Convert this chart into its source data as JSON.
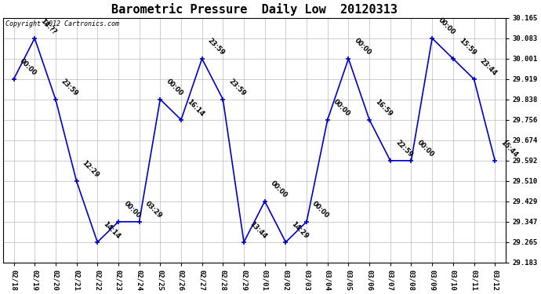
{
  "title": "Barometric Pressure  Daily Low  20120313",
  "copyright": "Copyright 2012 Cartronics.com",
  "x_labels": [
    "02/18",
    "02/19",
    "02/20",
    "02/21",
    "02/22",
    "02/23",
    "02/24",
    "02/25",
    "02/26",
    "02/27",
    "02/28",
    "02/29",
    "03/01",
    "03/02",
    "03/03",
    "03/04",
    "03/05",
    "03/06",
    "03/07",
    "03/08",
    "03/09",
    "03/10",
    "03/11",
    "03/12"
  ],
  "y_values": [
    29.919,
    30.083,
    29.838,
    29.51,
    29.265,
    29.347,
    29.347,
    29.838,
    29.756,
    30.001,
    29.838,
    29.265,
    29.429,
    29.265,
    29.347,
    29.756,
    30.001,
    29.756,
    29.592,
    29.592,
    30.083,
    30.001,
    29.919,
    29.592
  ],
  "point_labels": [
    "00:00",
    "14:??",
    "23:59",
    "12:29",
    "14:14",
    "00:00",
    "03:29",
    "00:00",
    "16:14",
    "23:59",
    "23:59",
    "13:44",
    "00:00",
    "14:29",
    "00:00",
    "00:00",
    "00:00",
    "16:59",
    "22:59",
    "00:00",
    "00:00",
    "15:59",
    "23:44",
    "15:44"
  ],
  "line_color": "#0000cc",
  "marker_color": "#0000cc",
  "background_color": "#ffffff",
  "grid_color": "#bbbbbb",
  "ylim_min": 29.183,
  "ylim_max": 30.165,
  "yticks": [
    29.183,
    29.265,
    29.347,
    29.429,
    29.51,
    29.592,
    29.674,
    29.756,
    29.838,
    29.919,
    30.001,
    30.083,
    30.165
  ],
  "title_fontsize": 11,
  "label_fontsize": 6.0,
  "tick_fontsize": 6.5,
  "copyright_fontsize": 6.0
}
